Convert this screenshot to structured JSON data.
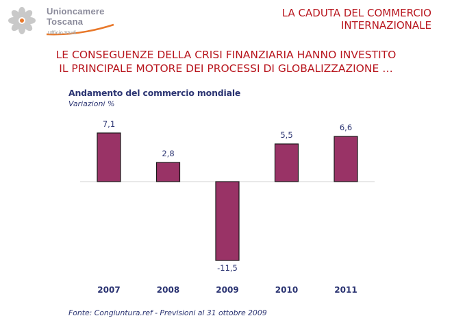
{
  "header": {
    "org_line1": "Unioncamere",
    "org_line2": "Toscana",
    "org_sub": "Ufficio Studi",
    "title_line1": "LA CADUTA DEL COMMERCIO",
    "title_line2": "INTERNAZIONALE"
  },
  "banner": {
    "line1": "LE CONSEGUENZE DELLA CRISI FINANZIARIA HANNO INVESTITO",
    "line2": "IL PRINCIPALE MOTORE DEI PROCESSI DI GLOBALIZZAZIONE …"
  },
  "colors": {
    "title_red": "#b8161e",
    "chart_text": "#2b3472",
    "bar_fill": "#993366",
    "logo_orange": "#e8782a"
  },
  "chart_data": {
    "type": "bar",
    "title": "Andamento del commercio mondiale",
    "subtitle": "Variazioni %",
    "categories": [
      "2007",
      "2008",
      "2009",
      "2010",
      "2011"
    ],
    "values": [
      7.1,
      2.8,
      -11.5,
      5.5,
      6.6
    ],
    "value_labels": [
      "7,1",
      "2,8",
      "-11,5",
      "5,5",
      "6,6"
    ],
    "xlabel": "",
    "ylabel": "",
    "ylim": [
      -12.5,
      8.5
    ],
    "grid": false,
    "legend": "none",
    "source": "Fonte: Congiuntura.ref - Previsioni al 31 ottobre 2009"
  }
}
